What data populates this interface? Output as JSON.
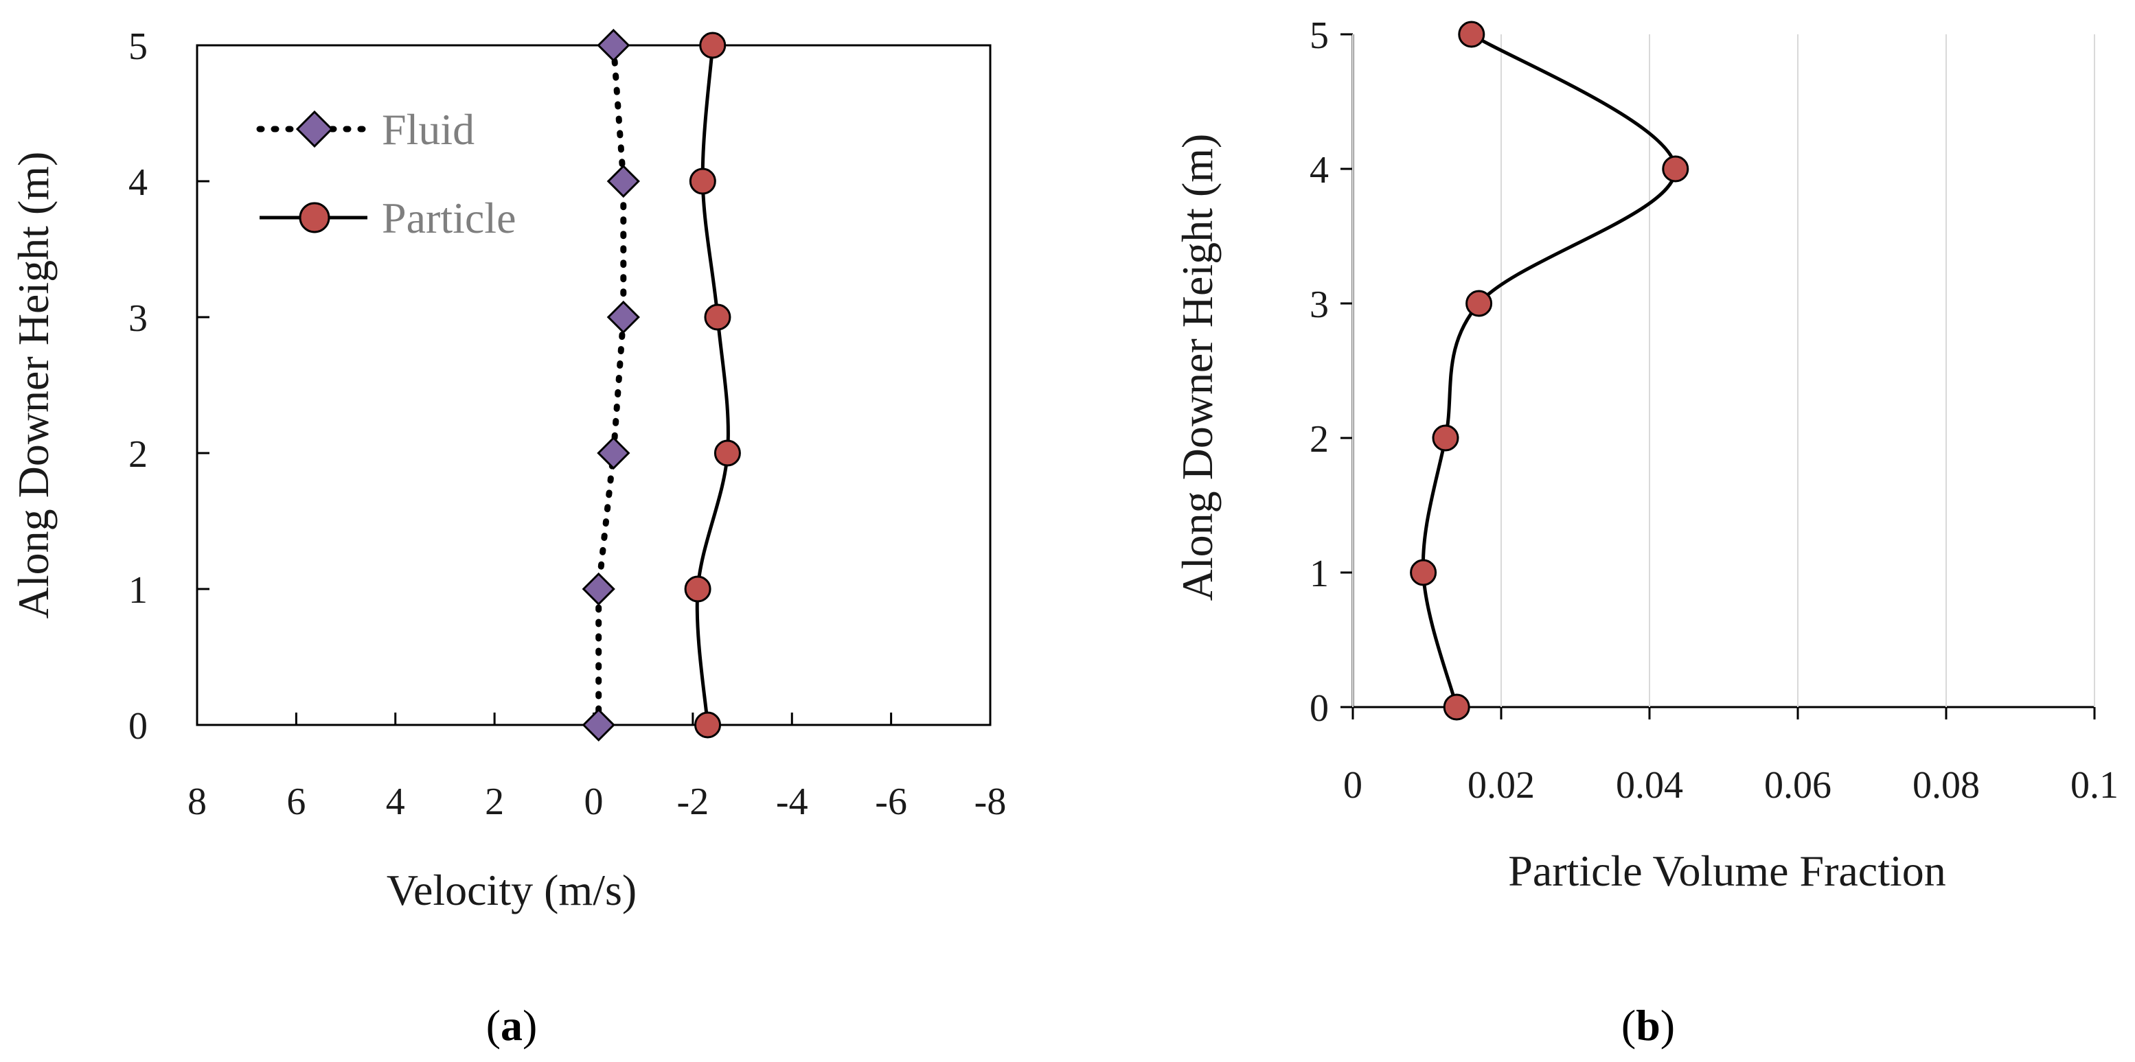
{
  "colors": {
    "fluid_marker": "#8064a2",
    "particle_marker": "#c0504d",
    "line": "#000000",
    "legend_text": "#7f7f7f"
  },
  "chart_data": [
    {
      "type": "line",
      "panel_label": "a",
      "xlabel": "Velocity (m/s)",
      "ylabel": "Along Downer Height  (m)",
      "xlim": [
        8,
        -8
      ],
      "ylim": [
        0,
        5
      ],
      "x_ticks": [
        8,
        6,
        4,
        2,
        0,
        -2,
        -4,
        -6,
        -8
      ],
      "x_tick_labels": [
        "8",
        "6",
        "4",
        "2",
        "0",
        "-2",
        "-4",
        "-6",
        "-8"
      ],
      "y_ticks": [
        0,
        1,
        2,
        3,
        4,
        5
      ],
      "y_tick_labels": [
        "0",
        "1",
        "2",
        "3",
        "4",
        "5"
      ],
      "legend": [
        "Fluid",
        "Particle"
      ],
      "series": [
        {
          "name": "Fluid",
          "marker": "diamond",
          "line_style": "dotted",
          "x": [
            -0.1,
            -0.1,
            -0.4,
            -0.6,
            -0.6,
            -0.4
          ],
          "y": [
            0,
            1,
            2,
            3,
            4,
            5
          ]
        },
        {
          "name": "Particle",
          "marker": "circle",
          "line_style": "solid",
          "smooth": true,
          "x": [
            -2.3,
            -2.1,
            -2.7,
            -2.5,
            -2.2,
            -2.4
          ],
          "y": [
            0,
            1,
            2,
            3,
            4,
            5
          ]
        }
      ]
    },
    {
      "type": "line",
      "panel_label": "b",
      "xlabel": "Particle Volume Fraction",
      "ylabel": "Along Downer Height  (m)",
      "xlim": [
        0,
        0.1
      ],
      "ylim": [
        0,
        5
      ],
      "x_ticks": [
        0,
        0.02,
        0.04,
        0.06,
        0.08,
        0.1
      ],
      "x_tick_labels": [
        "0",
        "0.02",
        "0.04",
        "0.06",
        "0.08",
        "0.1"
      ],
      "y_ticks": [
        0,
        1,
        2,
        3,
        4,
        5
      ],
      "y_tick_labels": [
        "0",
        "1",
        "2",
        "3",
        "4",
        "5"
      ],
      "series": [
        {
          "name": "Particle",
          "marker": "circle",
          "line_style": "solid",
          "smooth": true,
          "x": [
            0.014,
            0.0095,
            0.0125,
            0.017,
            0.0435,
            0.016
          ],
          "y": [
            0,
            1,
            2,
            3,
            4,
            5
          ]
        }
      ]
    }
  ],
  "captions": {
    "a": {
      "open": "(",
      "letter": "a",
      "close": ")"
    },
    "b": {
      "open": "(",
      "letter": "b",
      "close": ")"
    }
  }
}
